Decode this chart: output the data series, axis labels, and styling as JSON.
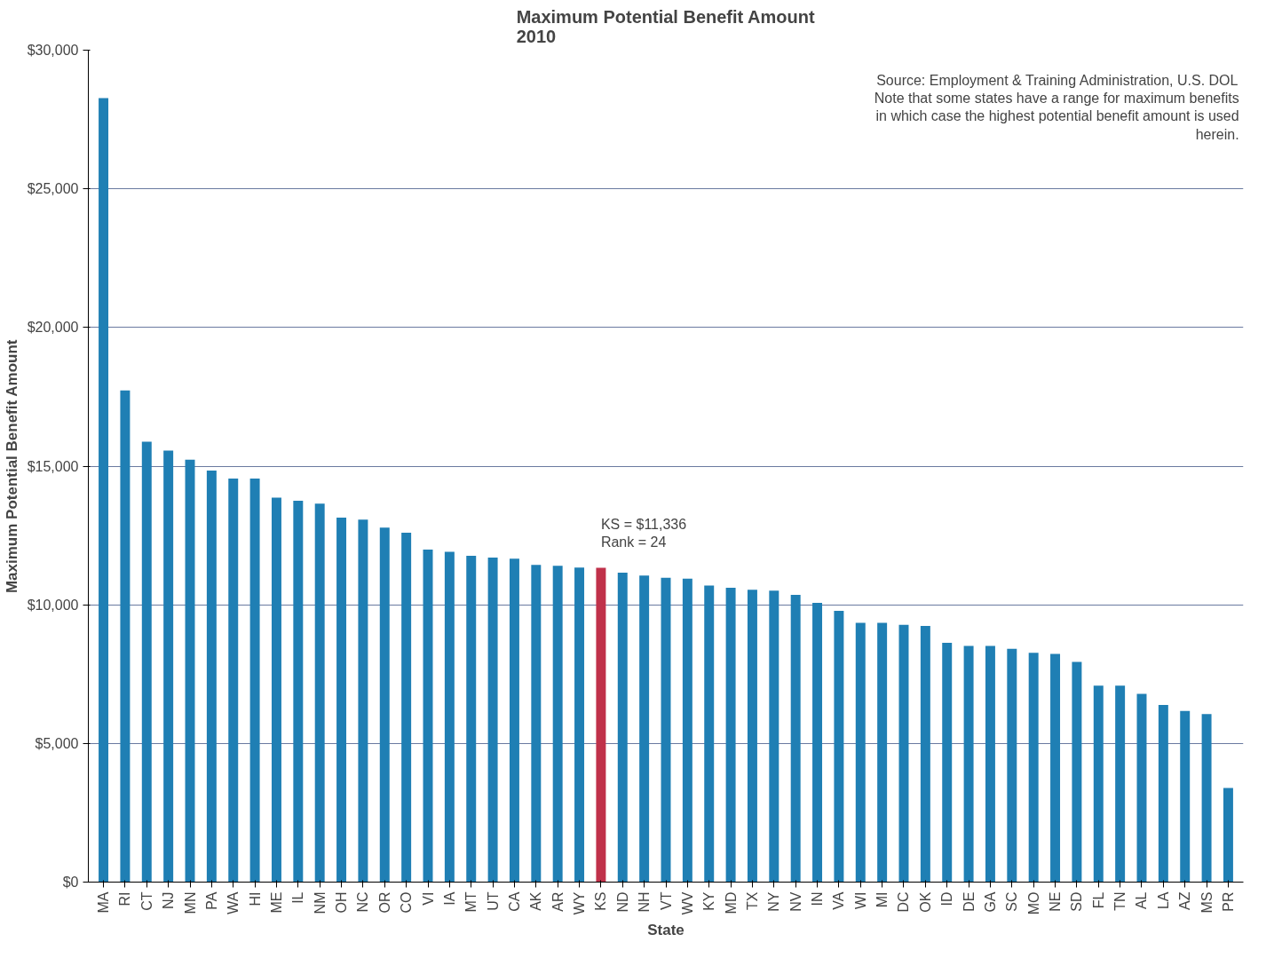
{
  "chart_data": {
    "type": "bar",
    "title": "Maximum Potential Benefit Amount\n2010",
    "xlabel": "State",
    "ylabel": "Maximum Potential Benefit Amount",
    "categories": [
      "MA",
      "RI",
      "CT",
      "NJ",
      "MN",
      "PA",
      "WA",
      "HI",
      "ME",
      "IL",
      "NM",
      "OH",
      "NC",
      "OR",
      "CO",
      "VI",
      "IA",
      "MT",
      "UT",
      "CA",
      "AK",
      "AR",
      "WY",
      "KS",
      "ND",
      "NH",
      "VT",
      "WV",
      "KY",
      "MD",
      "TX",
      "NY",
      "NV",
      "IN",
      "VA",
      "WI",
      "MI",
      "DC",
      "OK",
      "ID",
      "DE",
      "GA",
      "SC",
      "MO",
      "NE",
      "SD",
      "FL",
      "TN",
      "AL",
      "LA",
      "AZ",
      "MS",
      "PR"
    ],
    "values": [
      28270,
      17730,
      15880,
      15560,
      15230,
      14840,
      14550,
      14550,
      13860,
      13750,
      13650,
      13140,
      13070,
      12780,
      12600,
      11990,
      11910,
      11770,
      11700,
      11660,
      11440,
      11410,
      11340,
      11336,
      11160,
      11050,
      10970,
      10940,
      10690,
      10610,
      10540,
      10510,
      10360,
      10070,
      9780,
      9350,
      9350,
      9280,
      9240,
      8630,
      8520,
      8520,
      8410,
      8270,
      8230,
      7940,
      7080,
      7080,
      6790,
      6390,
      6170,
      6060,
      3390
    ],
    "colors": [
      "#1f7fb4",
      "#1f7fb4",
      "#1f7fb4",
      "#1f7fb4",
      "#1f7fb4",
      "#1f7fb4",
      "#1f7fb4",
      "#1f7fb4",
      "#1f7fb4",
      "#1f7fb4",
      "#1f7fb4",
      "#1f7fb4",
      "#1f7fb4",
      "#1f7fb4",
      "#1f7fb4",
      "#1f7fb4",
      "#1f7fb4",
      "#1f7fb4",
      "#1f7fb4",
      "#1f7fb4",
      "#1f7fb4",
      "#1f7fb4",
      "#1f7fb4",
      "#c0314a",
      "#1f7fb4",
      "#1f7fb4",
      "#1f7fb4",
      "#1f7fb4",
      "#1f7fb4",
      "#1f7fb4",
      "#1f7fb4",
      "#1f7fb4",
      "#1f7fb4",
      "#1f7fb4",
      "#1f7fb4",
      "#1f7fb4",
      "#1f7fb4",
      "#1f7fb4",
      "#1f7fb4",
      "#1f7fb4",
      "#1f7fb4",
      "#1f7fb4",
      "#1f7fb4",
      "#1f7fb4",
      "#1f7fb4",
      "#1f7fb4",
      "#1f7fb4",
      "#1f7fb4",
      "#1f7fb4",
      "#1f7fb4",
      "#1f7fb4",
      "#1f7fb4",
      "#1f7fb4"
    ],
    "ylim": [
      0,
      30000
    ],
    "yticks": [
      {
        "value": 0,
        "label": "$0"
      },
      {
        "value": 5000,
        "label": "$5,000"
      },
      {
        "value": 10000,
        "label": "$10,000"
      },
      {
        "value": 15000,
        "label": "$15,000"
      },
      {
        "value": 20000,
        "label": "$20,000"
      },
      {
        "value": 25000,
        "label": "$25,000"
      },
      {
        "value": 30000,
        "label": "$30,000"
      }
    ],
    "grid": "y",
    "annotations": [
      "Source: Employment & Training Administration, U.S. DOL\nNote that some states have a range for maximum benefits\nin which case the highest potential benefit amount is used\nherein.",
      {
        "text": "KS = $11,336\nRank = 24",
        "x": "KS",
        "y": 11336
      }
    ]
  }
}
